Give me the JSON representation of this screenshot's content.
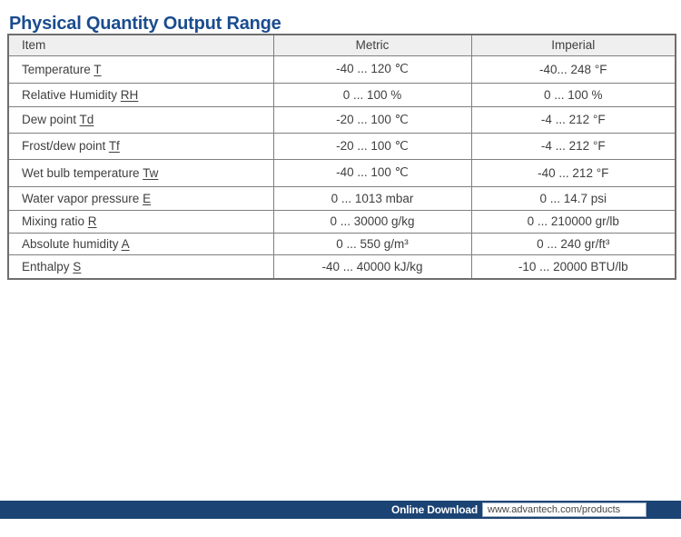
{
  "page": {
    "title": "Physical Quantity Output Range"
  },
  "table": {
    "columns": [
      "Item",
      "Metric",
      "Imperial"
    ],
    "rows": [
      {
        "label": "Temperature ",
        "symbol": "T",
        "metric": "-40 ... 120 ℃",
        "imperial": "-40... 248 °F"
      },
      {
        "label": "Relative Humidity ",
        "symbol": "RH",
        "metric": "0 ... 100 %",
        "imperial": "0 ... 100 %"
      },
      {
        "label": "Dew point ",
        "symbol": "Td",
        "metric": "-20 ... 100 ℃",
        "imperial": "-4 ... 212 °F"
      },
      {
        "label": "Frost/dew point ",
        "symbol": "Tf",
        "metric": "-20 ... 100 ℃",
        "imperial": "-4 ... 212 °F"
      },
      {
        "label": "Wet bulb temperature ",
        "symbol": "Tw",
        "metric": "-40 ... 100 ℃",
        "imperial": "-40 ... 212 °F"
      },
      {
        "label": "Water vapor pressure ",
        "symbol": "E",
        "metric": "0 ... 1013 mbar",
        "imperial": "0 ... 14.7 psi"
      },
      {
        "label": "Mixing ratio ",
        "symbol": "R",
        "metric": "0 ... 30000 g/kg",
        "imperial": "0 ... 210000 gr/lb"
      },
      {
        "label": "Absolute humidity ",
        "symbol": "A",
        "metric": "0 ... 550 g/m³",
        "imperial": "0 ... 240 gr/ft³"
      },
      {
        "label": "Enthalpy ",
        "symbol": "S",
        "metric": "-40 ... 40000 kJ/kg",
        "imperial": "-10 ... 20000 BTU/lb"
      }
    ]
  },
  "footer": {
    "download_label": "Online Download",
    "url": "www.advantech.com/products"
  },
  "colors": {
    "title_navy": "#1a4c8f",
    "footer_bar_navy": "#1b4373",
    "header_bg": "#efefef",
    "table_border": "#7f7f7f",
    "table_text": "#3f3f3f"
  }
}
